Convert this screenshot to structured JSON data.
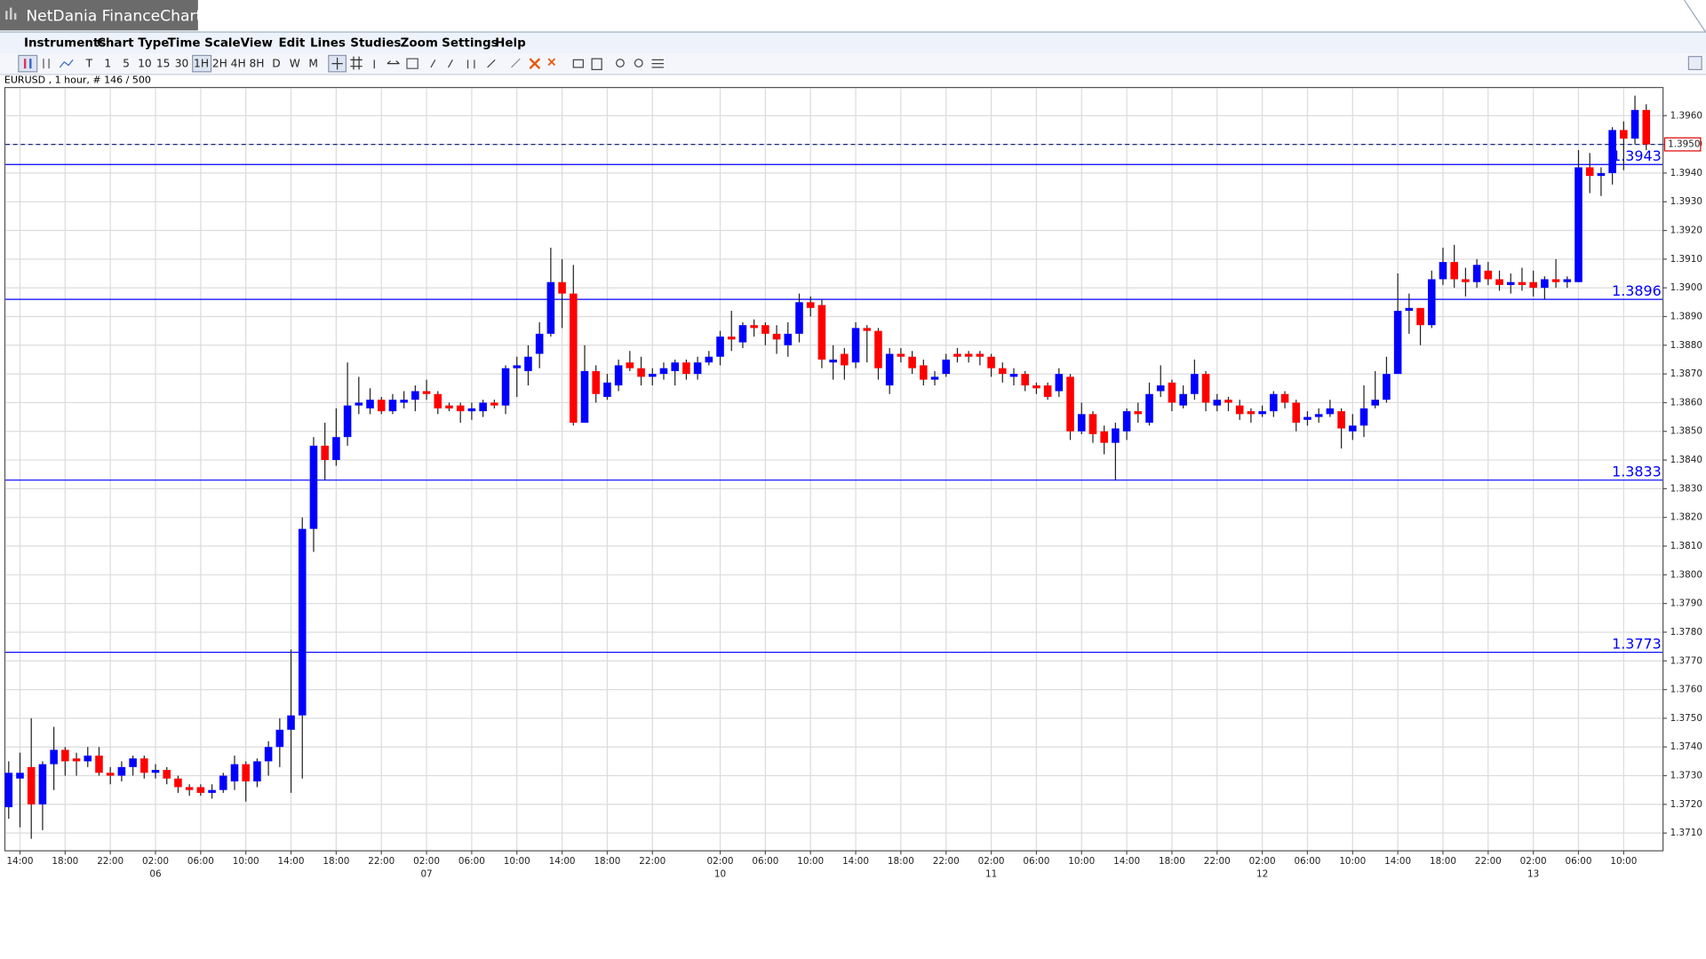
{
  "window": {
    "title": "NetDania FinanceChart"
  },
  "menu": [
    "Instruments",
    "Chart Type",
    "Time Scale",
    "View",
    "Edit",
    "Lines",
    "Studies",
    "Zoom",
    "Settings",
    "Help"
  ],
  "toolbar": [
    "T",
    "1",
    "5",
    "10",
    "15",
    "30",
    "1H",
    "2H",
    "4H",
    "8H",
    "D",
    "W",
    "M"
  ],
  "symbol_info": "EURUSD , 1 hour, # 146 / 500",
  "chart_data": {
    "type": "candlestick",
    "up_color": "#0000ff",
    "down_color": "#ff0000",
    "wick_color": "#222222",
    "grid": true,
    "ylim": [
      1.3704,
      1.397
    ],
    "yticks": [
      {
        "value": 1.371,
        "label": "1.3710"
      },
      {
        "value": 1.372,
        "label": "1.3720"
      },
      {
        "value": 1.373,
        "label": "1.3730"
      },
      {
        "value": 1.374,
        "label": "1.3740"
      },
      {
        "value": 1.375,
        "label": "1.3750"
      },
      {
        "value": 1.376,
        "label": "1.3760"
      },
      {
        "value": 1.377,
        "label": "1.3770"
      },
      {
        "value": 1.378,
        "label": "1.3780"
      },
      {
        "value": 1.379,
        "label": "1.3790"
      },
      {
        "value": 1.38,
        "label": "1.3800"
      },
      {
        "value": 1.381,
        "label": "1.3810"
      },
      {
        "value": 1.382,
        "label": "1.3820"
      },
      {
        "value": 1.383,
        "label": "1.3830"
      },
      {
        "value": 1.384,
        "label": "1.3840"
      },
      {
        "value": 1.385,
        "label": "1.3850"
      },
      {
        "value": 1.386,
        "label": "1.3860"
      },
      {
        "value": 1.387,
        "label": "1.3870"
      },
      {
        "value": 1.388,
        "label": "1.3880"
      },
      {
        "value": 1.389,
        "label": "1.3890"
      },
      {
        "value": 1.39,
        "label": "1.3900"
      },
      {
        "value": 1.391,
        "label": "1.3910"
      },
      {
        "value": 1.392,
        "label": "1.3920"
      },
      {
        "value": 1.393,
        "label": "1.3930"
      },
      {
        "value": 1.394,
        "label": "1.3940"
      },
      {
        "value": 1.395,
        "label": "1.3950"
      },
      {
        "value": 1.396,
        "label": "1.3960"
      }
    ],
    "hlines": [
      1.3943,
      1.3896,
      1.3833,
      1.3773
    ],
    "hline_color": "#0000ff",
    "last": {
      "value": 1.395,
      "label": "1.3950"
    },
    "categories": [
      null,
      "14:00",
      null,
      null,
      null,
      "18:00",
      null,
      null,
      null,
      "22:00",
      null,
      null,
      null,
      "02:00",
      null,
      null,
      null,
      "06:00",
      null,
      null,
      null,
      "10:00",
      null,
      null,
      null,
      "14:00",
      null,
      null,
      null,
      "18:00",
      null,
      null,
      null,
      "22:00",
      null,
      null,
      null,
      "02:00",
      null,
      null,
      null,
      "06:00",
      null,
      null,
      null,
      "10:00",
      null,
      null,
      null,
      "14:00",
      null,
      null,
      null,
      "18:00",
      null,
      null,
      null,
      "22:00",
      null,
      null,
      null,
      null,
      null,
      "02:00",
      null,
      null,
      null,
      "06:00",
      null,
      null,
      null,
      "10:00",
      null,
      null,
      null,
      "14:00",
      null,
      null,
      null,
      "18:00",
      null,
      null,
      null,
      "22:00",
      null,
      null,
      null,
      "02:00",
      null,
      null,
      null,
      "06:00",
      null,
      null,
      null,
      "10:00",
      null,
      null,
      null,
      "14:00",
      null,
      null,
      null,
      "18:00",
      null,
      null,
      null,
      "22:00",
      null,
      null,
      null,
      "02:00",
      null,
      null,
      null,
      "06:00",
      null,
      null,
      null,
      "10:00",
      null,
      null,
      null,
      "14:00",
      null,
      null,
      null,
      "18:00",
      null,
      null,
      null,
      "22:00",
      null,
      null,
      null,
      "02:00",
      null,
      null,
      null,
      "06:00",
      null,
      null,
      null,
      "10:00",
      null,
      null
    ],
    "dates": [
      null,
      null,
      null,
      null,
      null,
      null,
      null,
      null,
      null,
      null,
      null,
      null,
      null,
      "06",
      null,
      null,
      null,
      null,
      null,
      null,
      null,
      null,
      null,
      null,
      null,
      null,
      null,
      null,
      null,
      null,
      null,
      null,
      null,
      null,
      null,
      null,
      null,
      "07",
      null,
      null,
      null,
      null,
      null,
      null,
      null,
      null,
      null,
      null,
      null,
      null,
      null,
      null,
      null,
      null,
      null,
      null,
      null,
      null,
      null,
      null,
      null,
      null,
      null,
      "10",
      null,
      null,
      null,
      null,
      null,
      null,
      null,
      null,
      null,
      null,
      null,
      null,
      null,
      null,
      null,
      null,
      null,
      null,
      null,
      null,
      null,
      null,
      null,
      "11",
      null,
      null,
      null,
      null,
      null,
      null,
      null,
      null,
      null,
      null,
      null,
      null,
      null,
      null,
      null,
      null,
      null,
      null,
      null,
      null,
      null,
      null,
      null,
      "12",
      null,
      null,
      null,
      null,
      null,
      null,
      null,
      null,
      null,
      null,
      null,
      null,
      null,
      null,
      null,
      null,
      null,
      null,
      null,
      null,
      null,
      null,
      null,
      "13",
      null,
      null,
      null,
      null,
      null,
      null,
      null,
      null,
      null,
      null
    ],
    "open": [
      1.3719,
      1.3729,
      1.3733,
      1.372,
      1.3734,
      1.3739,
      1.3736,
      1.3735,
      1.3737,
      1.3731,
      1.373,
      1.3733,
      1.3736,
      1.3731,
      1.3732,
      1.3729,
      1.3726,
      1.3726,
      1.3724,
      1.3725,
      1.3728,
      1.3734,
      1.3728,
      1.3735,
      1.374,
      1.3746,
      1.3751,
      1.3816,
      1.3845,
      1.384,
      1.3848,
      1.3859,
      1.3858,
      1.3861,
      1.3857,
      1.386,
      1.3861,
      1.3864,
      1.3863,
      1.3859,
      1.3859,
      1.3857,
      1.3857,
      1.386,
      1.3859,
      1.3872,
      1.3871,
      1.3877,
      1.3884,
      1.3902,
      1.3898,
      1.3853,
      1.3871,
      1.3862,
      1.3866,
      1.3874,
      1.3872,
      1.3869,
      1.387,
      1.3871,
      1.3874,
      1.387,
      1.3874,
      1.3876,
      1.3883,
      1.3881,
      1.3887,
      1.3887,
      1.3884,
      1.388,
      1.3884,
      1.3895,
      1.3894,
      1.3874,
      1.3877,
      1.3874,
      1.3886,
      1.3885,
      1.3866,
      1.3877,
      1.3876,
      1.3873,
      1.3868,
      1.387,
      1.3877,
      1.3877,
      1.3877,
      1.3876,
      1.3872,
      1.3869,
      1.387,
      1.3866,
      1.3866,
      1.3864,
      1.3869,
      1.385,
      1.3856,
      1.385,
      1.3846,
      1.385,
      1.3857,
      1.3853,
      1.3864,
      1.3867,
      1.3859,
      1.3863,
      1.387,
      1.3859,
      1.3861,
      1.3859,
      1.3857,
      1.3856,
      1.3857,
      1.3863,
      1.386,
      1.3854,
      1.3855,
      1.3856,
      1.3857,
      1.385,
      1.3852,
      1.3859,
      1.3861,
      1.387,
      1.3892,
      1.3893,
      1.3887,
      1.3903,
      1.3909,
      1.3903,
      1.3902,
      1.3906,
      1.3903,
      1.3901,
      1.3902,
      1.3902,
      1.39,
      1.3903,
      1.3902,
      1.3902,
      1.3942,
      1.3939,
      1.394,
      1.3955,
      1.3952,
      1.3962
    ],
    "high": [
      1.3735,
      1.3738,
      1.375,
      1.3735,
      1.3747,
      1.374,
      1.3738,
      1.374,
      1.374,
      1.3733,
      1.3735,
      1.3737,
      1.3737,
      1.3734,
      1.3733,
      1.373,
      1.3727,
      1.3727,
      1.3727,
      1.3731,
      1.3737,
      1.3735,
      1.3736,
      1.3742,
      1.375,
      1.3774,
      1.382,
      1.3848,
      1.3853,
      1.3858,
      1.3874,
      1.3869,
      1.3865,
      1.3862,
      1.3863,
      1.3864,
      1.3866,
      1.3868,
      1.3864,
      1.386,
      1.386,
      1.386,
      1.3861,
      1.3861,
      1.3873,
      1.3876,
      1.388,
      1.3888,
      1.3914,
      1.391,
      1.3908,
      1.388,
      1.3873,
      1.387,
      1.3875,
      1.3878,
      1.3876,
      1.3872,
      1.3874,
      1.3875,
      1.3875,
      1.3876,
      1.3878,
      1.3885,
      1.3892,
      1.3888,
      1.3889,
      1.3888,
      1.3887,
      1.3888,
      1.3898,
      1.3897,
      1.3896,
      1.388,
      1.3879,
      1.3888,
      1.3887,
      1.3886,
      1.3879,
      1.3879,
      1.3878,
      1.3875,
      1.3871,
      1.3877,
      1.3879,
      1.3878,
      1.3878,
      1.3877,
      1.3874,
      1.3872,
      1.3871,
      1.3867,
      1.3867,
      1.3872,
      1.387,
      1.386,
      1.3857,
      1.3852,
      1.3853,
      1.3858,
      1.386,
      1.3867,
      1.3873,
      1.3868,
      1.3866,
      1.3875,
      1.3871,
      1.3863,
      1.3862,
      1.3861,
      1.3858,
      1.3859,
      1.3864,
      1.3864,
      1.3861,
      1.3857,
      1.3858,
      1.3861,
      1.3858,
      1.3856,
      1.3866,
      1.3871,
      1.3876,
      1.3905,
      1.3898,
      1.3893,
      1.3906,
      1.3914,
      1.3915,
      1.3907,
      1.391,
      1.3909,
      1.3906,
      1.3905,
      1.3907,
      1.3906,
      1.3904,
      1.391,
      1.3904,
      1.3948,
      1.3947,
      1.3942,
      1.3956,
      1.3958,
      1.3967,
      1.3964
    ],
    "low": [
      1.3715,
      1.3712,
      1.3708,
      1.3711,
      1.3725,
      1.373,
      1.373,
      1.3733,
      1.373,
      1.3727,
      1.3728,
      1.373,
      1.3729,
      1.3729,
      1.3727,
      1.3724,
      1.3723,
      1.3723,
      1.3722,
      1.3724,
      1.3725,
      1.3721,
      1.3726,
      1.373,
      1.3733,
      1.3724,
      1.3729,
      1.3808,
      1.3833,
      1.3838,
      1.3845,
      1.3856,
      1.3856,
      1.3856,
      1.3856,
      1.3858,
      1.3857,
      1.3861,
      1.3856,
      1.3857,
      1.3853,
      1.3854,
      1.3855,
      1.3858,
      1.3856,
      1.3862,
      1.3866,
      1.3872,
      1.3883,
      1.3886,
      1.3852,
      1.3853,
      1.386,
      1.3861,
      1.3864,
      1.3871,
      1.3866,
      1.3866,
      1.3868,
      1.3866,
      1.3868,
      1.3868,
      1.3873,
      1.3873,
      1.3878,
      1.3879,
      1.3883,
      1.388,
      1.3877,
      1.3876,
      1.3881,
      1.389,
      1.3872,
      1.3868,
      1.3868,
      1.3872,
      1.3874,
      1.3868,
      1.3863,
      1.3874,
      1.387,
      1.3866,
      1.3866,
      1.3869,
      1.3874,
      1.3874,
      1.3873,
      1.3869,
      1.3867,
      1.3866,
      1.3864,
      1.3863,
      1.3861,
      1.3862,
      1.3847,
      1.3849,
      1.3846,
      1.3842,
      1.3833,
      1.3847,
      1.3853,
      1.3852,
      1.3862,
      1.3857,
      1.3858,
      1.3861,
      1.3857,
      1.3857,
      1.3857,
      1.3854,
      1.3853,
      1.3855,
      1.3855,
      1.3858,
      1.385,
      1.3852,
      1.3853,
      1.3855,
      1.3844,
      1.3847,
      1.3848,
      1.3858,
      1.386,
      1.387,
      1.3884,
      1.388,
      1.3886,
      1.3901,
      1.39,
      1.3897,
      1.39,
      1.3901,
      1.3899,
      1.3898,
      1.3899,
      1.3897,
      1.3896,
      1.39,
      1.39,
      1.3902,
      1.3933,
      1.3932,
      1.3936,
      1.3941,
      1.395,
      1.3948
    ],
    "close": [
      1.3731,
      1.3731,
      1.372,
      1.3734,
      1.3739,
      1.3735,
      1.3735,
      1.3737,
      1.3731,
      1.373,
      1.3733,
      1.3736,
      1.3731,
      1.3732,
      1.3729,
      1.3726,
      1.3725,
      1.3724,
      1.3725,
      1.373,
      1.3734,
      1.3728,
      1.3735,
      1.374,
      1.3746,
      1.3751,
      1.3816,
      1.3845,
      1.384,
      1.3848,
      1.3859,
      1.386,
      1.3861,
      1.3857,
      1.3861,
      1.3861,
      1.3864,
      1.3863,
      1.3858,
      1.3858,
      1.3857,
      1.3858,
      1.386,
      1.3859,
      1.3872,
      1.3873,
      1.3876,
      1.3884,
      1.3902,
      1.3898,
      1.3853,
      1.3871,
      1.3863,
      1.3867,
      1.3873,
      1.3872,
      1.3869,
      1.387,
      1.3872,
      1.3874,
      1.387,
      1.3874,
      1.3876,
      1.3883,
      1.3882,
      1.3887,
      1.3886,
      1.3884,
      1.3882,
      1.3884,
      1.3895,
      1.3893,
      1.3875,
      1.3875,
      1.3873,
      1.3886,
      1.3885,
      1.3872,
      1.3877,
      1.3876,
      1.3872,
      1.3868,
      1.3869,
      1.3875,
      1.3876,
      1.3876,
      1.3876,
      1.3872,
      1.387,
      1.387,
      1.3866,
      1.3865,
      1.3862,
      1.387,
      1.385,
      1.3856,
      1.3849,
      1.3846,
      1.3851,
      1.3857,
      1.3856,
      1.3863,
      1.3866,
      1.386,
      1.3863,
      1.387,
      1.386,
      1.3861,
      1.386,
      1.3856,
      1.3856,
      1.3857,
      1.3863,
      1.386,
      1.3853,
      1.3855,
      1.3856,
      1.3858,
      1.3851,
      1.3852,
      1.3858,
      1.3861,
      1.387,
      1.3892,
      1.3893,
      1.3887,
      1.3903,
      1.3909,
      1.3903,
      1.3902,
      1.3908,
      1.3903,
      1.3901,
      1.3902,
      1.3901,
      1.39,
      1.3903,
      1.3902,
      1.3903,
      1.3942,
      1.3939,
      1.394,
      1.3955,
      1.3952,
      1.3962,
      1.395
    ]
  }
}
